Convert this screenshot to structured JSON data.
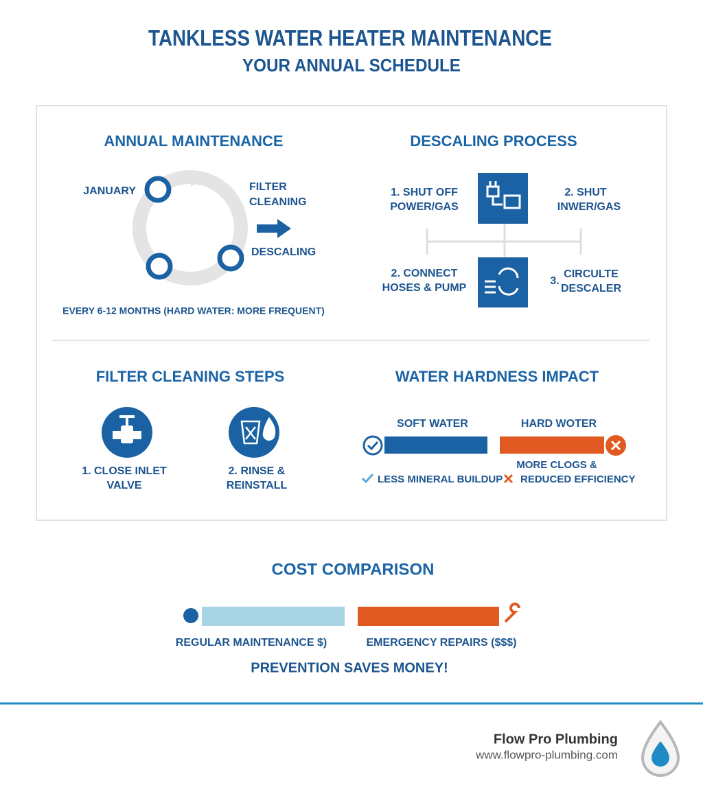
{
  "header": {
    "title": "TANKLESS WATER HEATER MAINTENANCE",
    "subtitle": "YOUR ANNUAL SCHEDULE"
  },
  "annual_maintenance": {
    "title": "ANNUAL MAINTENANCE",
    "january": "JANUARY",
    "filter_cleaning": [
      "FILTER",
      "CLEANING"
    ],
    "descaling": "DESCALING",
    "note": "EVERY 6-12 MONTHS (HARD WATER: MORE FREQUENT)"
  },
  "descaling_process": {
    "title": "DESCALING PROCESS",
    "steps": [
      {
        "lines": [
          "1.  SHUT OFF",
          "POWER/GAS"
        ]
      },
      {
        "lines": [
          "2.  SHUT",
          "INWER/GAS"
        ]
      },
      {
        "lines": [
          "2. CONNECT",
          "HOSES & PUMP"
        ]
      },
      {
        "number": "3.",
        "lines": [
          "CIRCULTE",
          "DESCALER"
        ]
      }
    ]
  },
  "filter_cleaning_steps": {
    "title": "FILTER CLEANING STEPS",
    "steps": [
      [
        "1. CLOSE INLET",
        "VALVE"
      ],
      [
        "2. RINSE &",
        "REINSTALL"
      ]
    ]
  },
  "water_hardness_impact": {
    "title": "WATER HARDNESS IMPACT",
    "soft": {
      "label": "SOFT WATER",
      "note": "LESS MINERAL BUILDUP"
    },
    "hard": {
      "label": "HARD WOTER",
      "note": [
        "MORE CLOGS &",
        "REDUCED EFFICIENCY"
      ]
    }
  },
  "cost_comparison": {
    "title": "COST COMPARISON",
    "regular": "REGULAR MAINTENANCE $)",
    "emergency": "EMERGENCY REPAIRS ($$$)",
    "tagline": "PREVENTION SAVES MONEY!"
  },
  "footer": {
    "company": "Flow Pro Plumbing",
    "url": "www.flowpro-plumbing.com"
  }
}
